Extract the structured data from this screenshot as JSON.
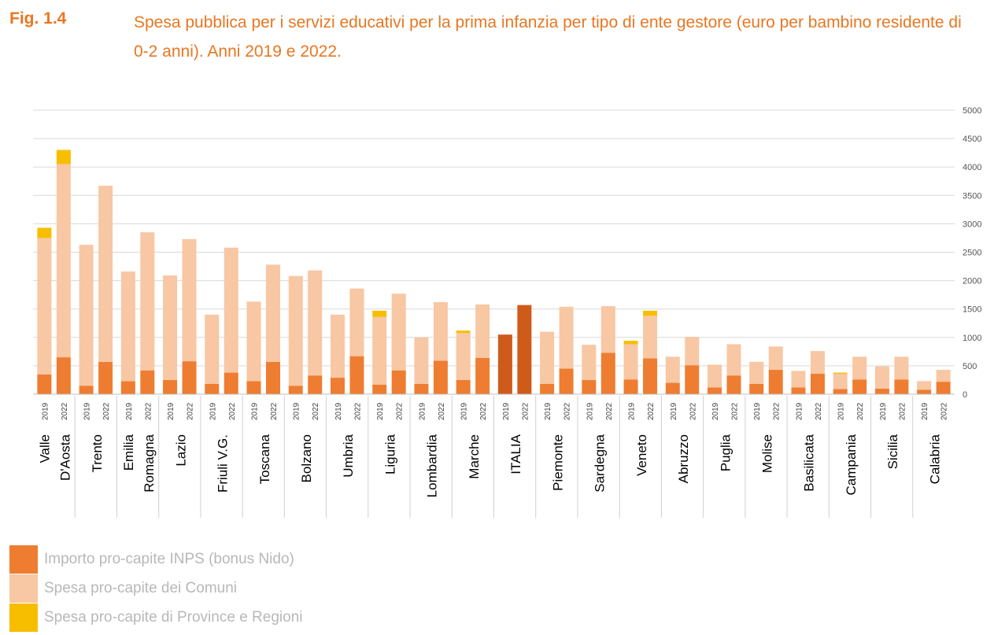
{
  "figure": {
    "label": "Fig. 1.4",
    "title": "Spesa pubblica per i servizi educativi per la prima infanzia per tipo di ente gestore (euro per bambino residente di 0-2 anni). Anni 2019 e 2022."
  },
  "chart_data": {
    "type": "bar",
    "stacked": true,
    "y_axis_position": "right",
    "ylim": [
      0,
      5000
    ],
    "yticks": [
      0,
      500,
      1000,
      1500,
      2000,
      2500,
      3000,
      3500,
      4000,
      4500,
      5000
    ],
    "grid": true,
    "years": [
      "2019",
      "2022"
    ],
    "groups": [
      {
        "name": [
          "Valle",
          "D'Aosta"
        ],
        "inps": [
          350,
          650
        ],
        "comuni": [
          2400,
          3400
        ],
        "province": [
          180,
          250
        ]
      },
      {
        "name": [
          "Trento"
        ],
        "inps": [
          150,
          570
        ],
        "comuni": [
          2480,
          3100
        ],
        "province": [
          0,
          0
        ]
      },
      {
        "name": [
          "Emilia",
          "Romagna"
        ],
        "inps": [
          230,
          420
        ],
        "comuni": [
          1930,
          2430
        ],
        "province": [
          0,
          0
        ]
      },
      {
        "name": [
          "Lazio"
        ],
        "inps": [
          250,
          580
        ],
        "comuni": [
          1840,
          2150
        ],
        "province": [
          0,
          0
        ]
      },
      {
        "name": [
          "Friuli V.G."
        ],
        "inps": [
          180,
          380
        ],
        "comuni": [
          1220,
          2200
        ],
        "province": [
          0,
          0
        ]
      },
      {
        "name": [
          "Toscana"
        ],
        "inps": [
          230,
          570
        ],
        "comuni": [
          1400,
          1710
        ],
        "province": [
          0,
          0
        ]
      },
      {
        "name": [
          "Bolzano"
        ],
        "inps": [
          150,
          330
        ],
        "comuni": [
          1930,
          1850
        ],
        "province": [
          0,
          0
        ]
      },
      {
        "name": [
          "Umbria"
        ],
        "inps": [
          290,
          670
        ],
        "comuni": [
          1110,
          1190
        ],
        "province": [
          0,
          0
        ]
      },
      {
        "name": [
          "Liguria"
        ],
        "inps": [
          170,
          420
        ],
        "comuni": [
          1190,
          1350
        ],
        "province": [
          110,
          0
        ]
      },
      {
        "name": [
          "Lombardia"
        ],
        "inps": [
          180,
          590
        ],
        "comuni": [
          820,
          1030
        ],
        "province": [
          0,
          0
        ]
      },
      {
        "name": [
          "Marche"
        ],
        "inps": [
          250,
          640
        ],
        "comuni": [
          830,
          940
        ],
        "province": [
          40,
          0
        ]
      },
      {
        "name": [
          "ITALIA"
        ],
        "inps": [
          1050,
          1570
        ],
        "comuni": [
          0,
          0
        ],
        "province": [
          0,
          0
        ]
      },
      {
        "name": [
          "Piemonte"
        ],
        "inps": [
          180,
          450
        ],
        "comuni": [
          920,
          1090
        ],
        "province": [
          0,
          0
        ]
      },
      {
        "name": [
          "Sardegna"
        ],
        "inps": [
          250,
          730
        ],
        "comuni": [
          620,
          820
        ],
        "province": [
          0,
          0
        ]
      },
      {
        "name": [
          "Veneto"
        ],
        "inps": [
          260,
          630
        ],
        "comuni": [
          620,
          750
        ],
        "province": [
          60,
          90
        ]
      },
      {
        "name": [
          "Abruzzo"
        ],
        "inps": [
          200,
          510
        ],
        "comuni": [
          460,
          500
        ],
        "province": [
          0,
          0
        ]
      },
      {
        "name": [
          "Puglia"
        ],
        "inps": [
          120,
          330
        ],
        "comuni": [
          400,
          550
        ],
        "province": [
          0,
          0
        ]
      },
      {
        "name": [
          "Molise"
        ],
        "inps": [
          180,
          430
        ],
        "comuni": [
          390,
          410
        ],
        "province": [
          0,
          0
        ]
      },
      {
        "name": [
          "Basilicata"
        ],
        "inps": [
          120,
          360
        ],
        "comuni": [
          290,
          400
        ],
        "province": [
          0,
          0
        ]
      },
      {
        "name": [
          "Campania"
        ],
        "inps": [
          90,
          260
        ],
        "comuni": [
          270,
          400
        ],
        "province": [
          20,
          0
        ]
      },
      {
        "name": [
          "Sicilia"
        ],
        "inps": [
          100,
          260
        ],
        "comuni": [
          390,
          400
        ],
        "province": [
          0,
          0
        ]
      },
      {
        "name": [
          "Calabria"
        ],
        "inps": [
          80,
          220
        ],
        "comuni": [
          150,
          210
        ],
        "province": [
          0,
          0
        ]
      }
    ],
    "series": [
      {
        "key": "inps",
        "name": "Importo pro-capite INPS (bonus Nido)",
        "color": "#ee7d31"
      },
      {
        "key": "comuni",
        "name": "Spesa pro-capite dei Comuni",
        "color": "#f8c7a3"
      },
      {
        "key": "province",
        "name": "Spesa pro-capite di Province e Regioni",
        "color": "#f7be00"
      }
    ],
    "italia_inps_color": "#cf5b1b"
  }
}
